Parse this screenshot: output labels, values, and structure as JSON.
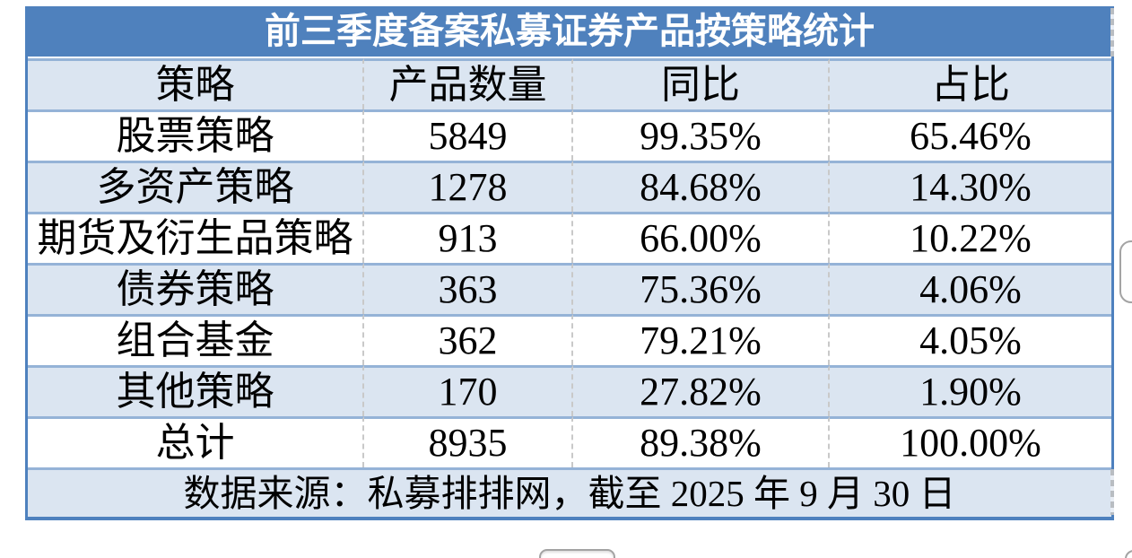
{
  "table": {
    "title": "前三季度备案私募证券产品按策略统计",
    "columns": [
      "策略",
      "产品数量",
      "同比",
      "占比"
    ],
    "rows": [
      {
        "strategy": "股票策略",
        "count": "5849",
        "yoy": "99.35%",
        "share": "65.46%"
      },
      {
        "strategy": "多资产策略",
        "count": "1278",
        "yoy": "84.68%",
        "share": "14.30%"
      },
      {
        "strategy": "期货及衍生品策略",
        "count": "913",
        "yoy": "66.00%",
        "share": "10.22%"
      },
      {
        "strategy": "债券策略",
        "count": "363",
        "yoy": "75.36%",
        "share": "4.06%"
      },
      {
        "strategy": "组合基金",
        "count": "362",
        "yoy": "79.21%",
        "share": "4.05%"
      },
      {
        "strategy": "其他策略",
        "count": "170",
        "yoy": "27.82%",
        "share": "1.90%"
      },
      {
        "strategy": "总计",
        "count": "8935",
        "yoy": "89.38%",
        "share": "100.00%"
      }
    ],
    "footer": "数据来源：私募排排网，截至 2025 年 9 月 30 日"
  },
  "chart_data": {
    "type": "table",
    "title": "前三季度备案私募证券产品按策略统计",
    "columns": [
      "策略",
      "产品数量",
      "同比",
      "占比"
    ],
    "categories": [
      "股票策略",
      "多资产策略",
      "期货及衍生品策略",
      "债券策略",
      "组合基金",
      "其他策略",
      "总计"
    ],
    "series": [
      {
        "name": "产品数量",
        "values": [
          5849,
          1278,
          913,
          363,
          362,
          170,
          8935
        ]
      },
      {
        "name": "同比(%)",
        "values": [
          99.35,
          84.68,
          66.0,
          75.36,
          79.21,
          27.82,
          89.38
        ]
      },
      {
        "name": "占比(%)",
        "values": [
          65.46,
          14.3,
          10.22,
          4.06,
          4.05,
          1.9,
          100.0
        ]
      }
    ],
    "source_note": "数据来源：私募排排网，截至 2025 年 9 月 30 日"
  },
  "colors": {
    "title-bg": "#4F81BD",
    "title-text": "#FFFFFF",
    "band-bg": "#DBE5F1",
    "sep-blue": "#95B3D7",
    "border-blue": "#4E81BE",
    "dash-gray": "#C9C9C9"
  }
}
